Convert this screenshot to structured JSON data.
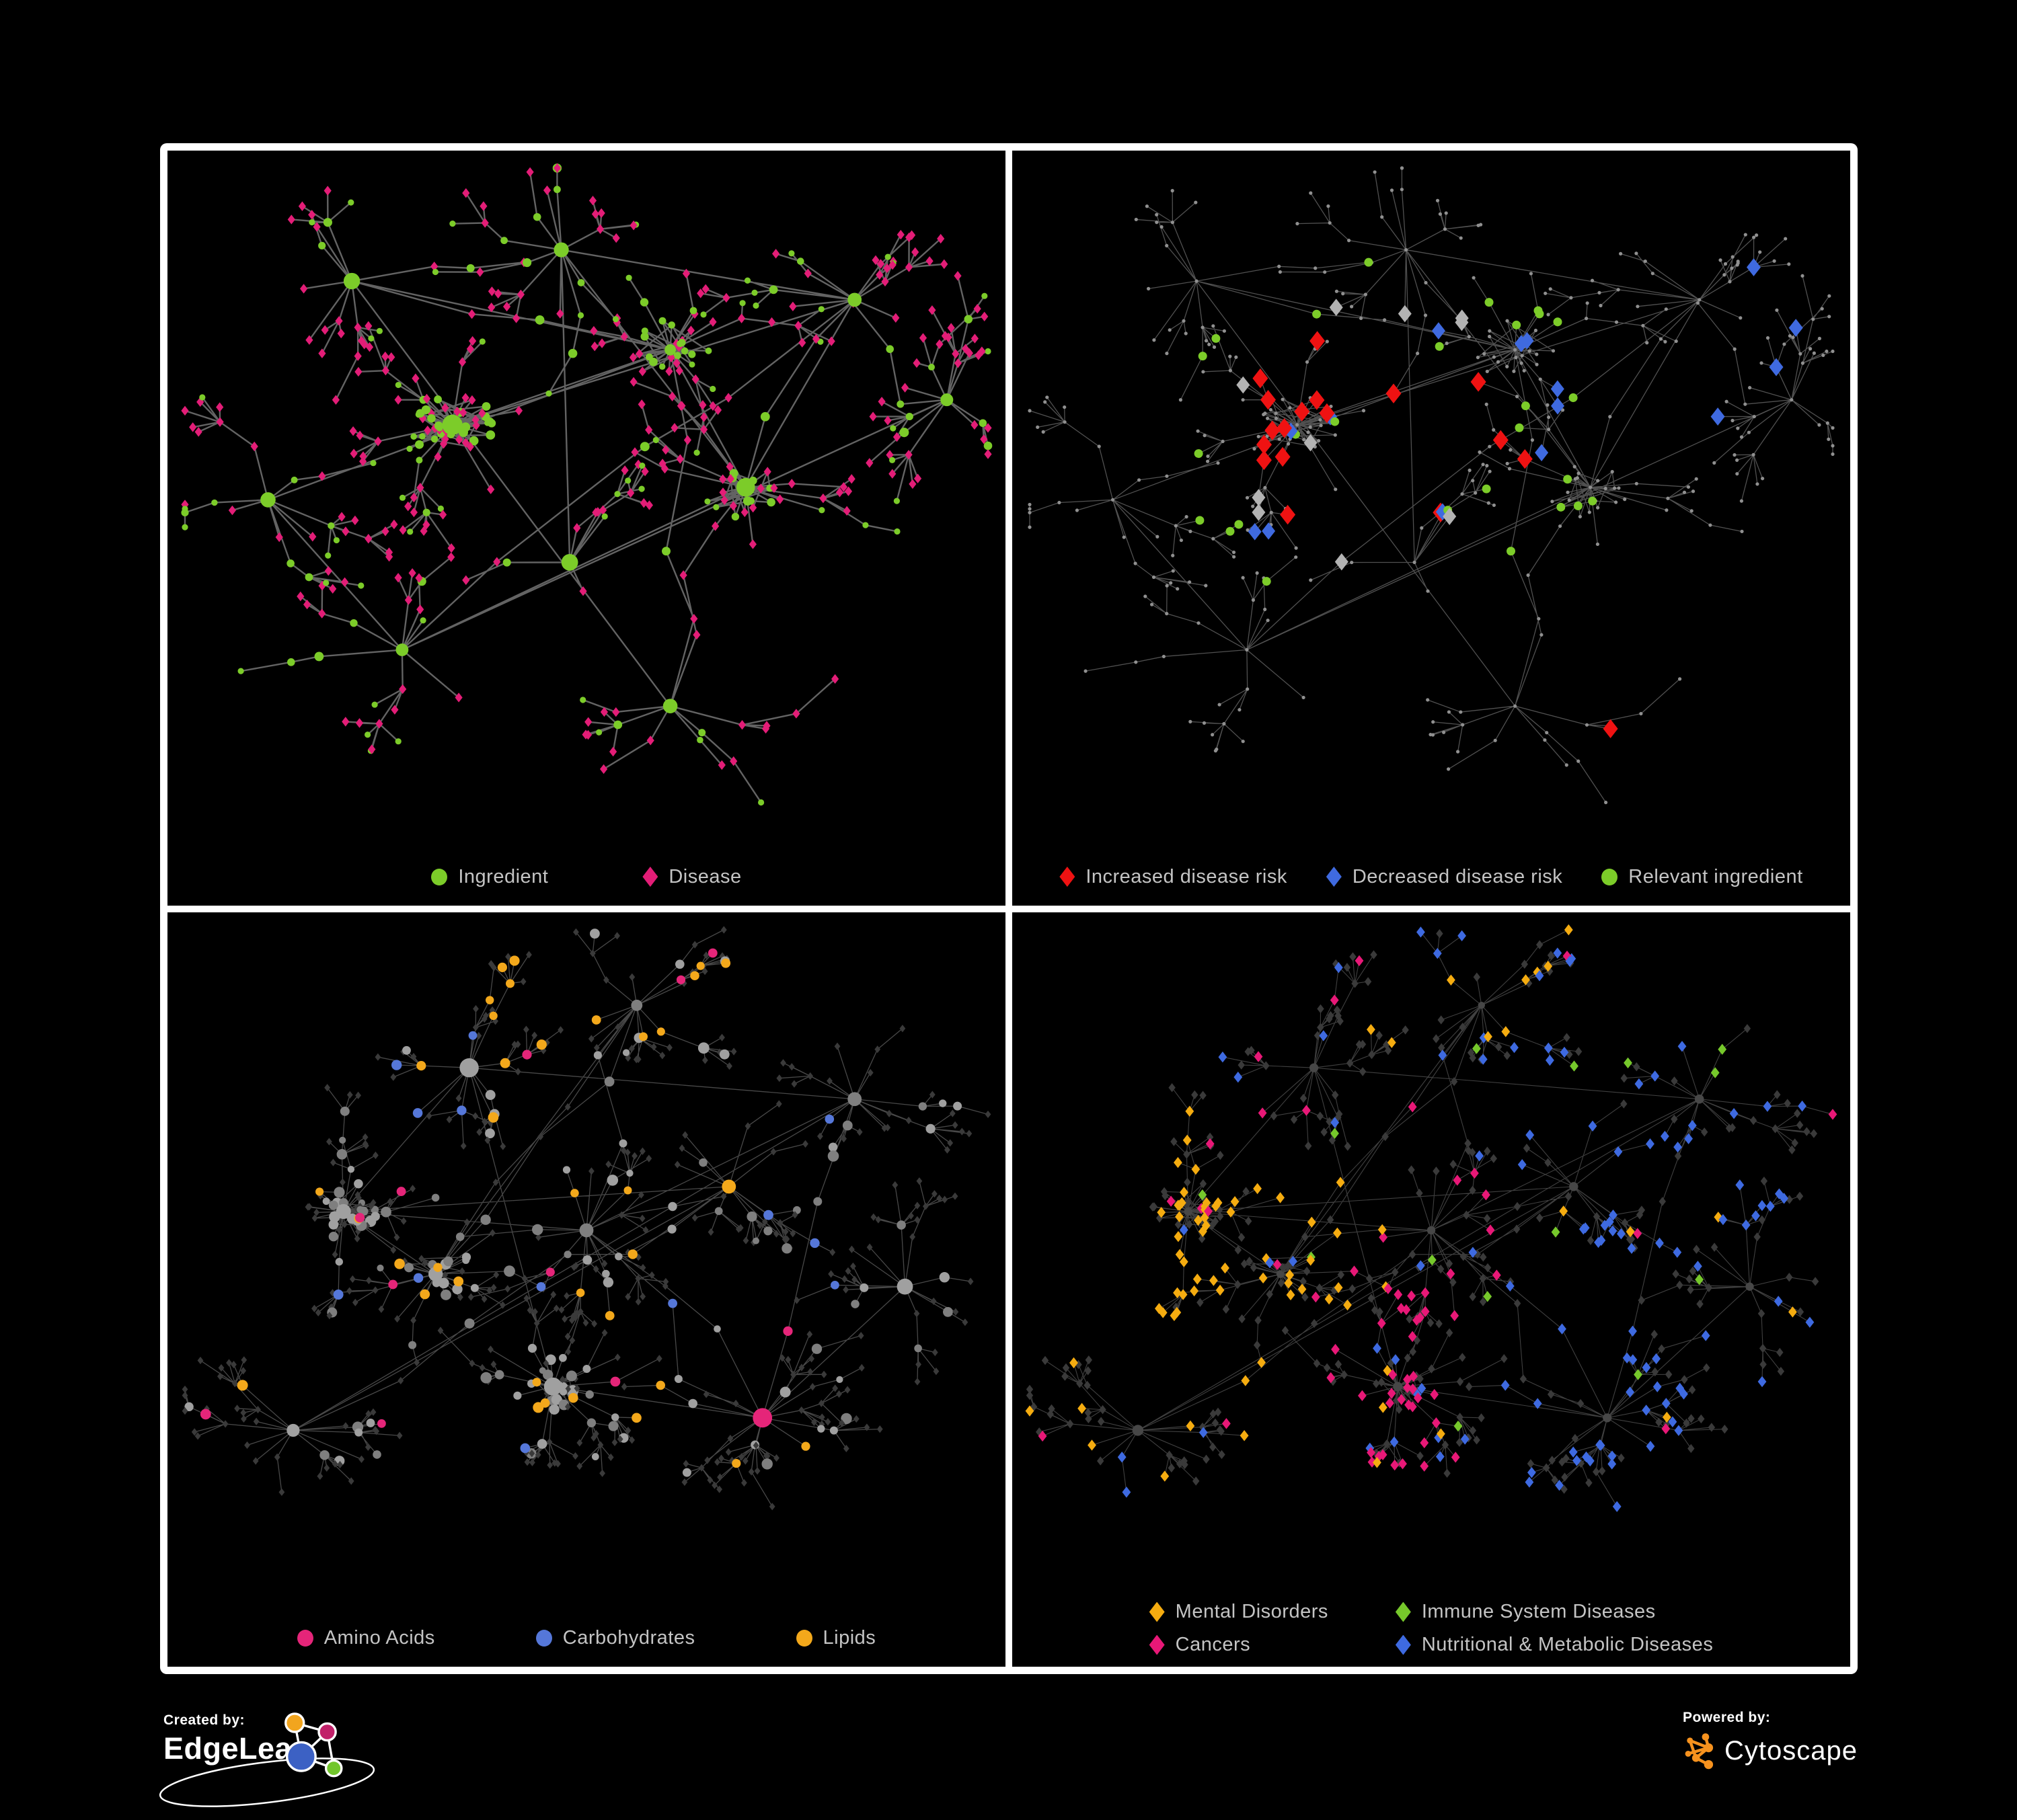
{
  "page": {
    "background": "#000000",
    "panel_border": "#ffffff",
    "legend_text_color": "#c4c4c4",
    "footer_text_color": "#ffffff"
  },
  "panels": [
    {
      "id": "ingredient-disease",
      "legend": [
        {
          "label": "Ingredient",
          "shape": "circle",
          "color": "#7ccc29"
        },
        {
          "label": "Disease",
          "shape": "diamond",
          "color": "#e31d77"
        }
      ],
      "net": {
        "seed": 2024,
        "styleSeed": 7,
        "style": "bipartite",
        "centers": [
          [
            0.34,
            0.4
          ],
          [
            0.6,
            0.28
          ],
          [
            0.69,
            0.5
          ],
          [
            0.22,
            0.17
          ],
          [
            0.47,
            0.12
          ],
          [
            0.82,
            0.2
          ],
          [
            0.6,
            0.85
          ],
          [
            0.28,
            0.76
          ],
          [
            0.12,
            0.52
          ],
          [
            0.48,
            0.62
          ],
          [
            0.93,
            0.36
          ]
        ],
        "dense": [
          0,
          1,
          2
        ],
        "fan": [
          6,
          11
        ],
        "depth": 3,
        "seg": 62,
        "split": 0.45,
        "bridges": 6,
        "edgeWidth": 2.4,
        "edgeOpacity": 0.9,
        "palette": {
          "a": "#7ccc29",
          "b": "#e31d77",
          "edge": "#6e6e6e"
        }
      }
    },
    {
      "id": "disease-risk",
      "legend": [
        {
          "label": "Increased disease risk",
          "shape": "diamond",
          "color": "#ef1212"
        },
        {
          "label": "Decreased disease risk",
          "shape": "diamond",
          "color": "#3f6ae0"
        },
        {
          "label": "Relevant ingredient",
          "shape": "circle",
          "color": "#7ccc29"
        }
      ],
      "net": {
        "seed": 2024,
        "styleSeed": 13,
        "style": "risk",
        "centers": [
          [
            0.34,
            0.4
          ],
          [
            0.6,
            0.28
          ],
          [
            0.69,
            0.5
          ],
          [
            0.22,
            0.17
          ],
          [
            0.47,
            0.12
          ],
          [
            0.82,
            0.2
          ],
          [
            0.6,
            0.85
          ],
          [
            0.28,
            0.76
          ],
          [
            0.12,
            0.52
          ],
          [
            0.48,
            0.62
          ],
          [
            0.93,
            0.36
          ]
        ],
        "dense": [
          0,
          1,
          2
        ],
        "fan": [
          6,
          11
        ],
        "depth": 3,
        "seg": 62,
        "split": 0.45,
        "bridges": 6,
        "edgeWidth": 1.3,
        "edgeOpacity": 0.8,
        "palette": {
          "base": "#909090",
          "edge": "#646464",
          "red": "#ef1212",
          "blue": "#3f6ae0",
          "silver": "#b3b3b3",
          "green": "#7ccc29"
        }
      }
    },
    {
      "id": "chemical-classes",
      "legend": [
        {
          "label": "Amino Acids",
          "shape": "circle",
          "color": "#e52579"
        },
        {
          "label": "Carbohydrates",
          "shape": "circle",
          "color": "#5577d9"
        },
        {
          "label": "Lipids",
          "shape": "circle",
          "color": "#f3a81b"
        }
      ],
      "net": {
        "seed": 515,
        "styleSeed": 21,
        "style": "chem",
        "centers": [
          [
            0.21,
            0.44
          ],
          [
            0.32,
            0.54
          ],
          [
            0.36,
            0.21
          ],
          [
            0.5,
            0.47
          ],
          [
            0.46,
            0.72
          ],
          [
            0.67,
            0.4
          ],
          [
            0.82,
            0.26
          ],
          [
            0.71,
            0.77
          ],
          [
            0.88,
            0.56
          ],
          [
            0.56,
            0.11
          ],
          [
            0.15,
            0.79
          ]
        ],
        "dense": [
          0,
          1,
          4
        ],
        "fan": [
          9,
          14
        ],
        "depth": 3,
        "seg": 56,
        "split": 0.5,
        "bridges": 8,
        "flavors": [
          "gray",
          "gray",
          "lipid",
          "mixed",
          "gray",
          "gray",
          "gray",
          "gray",
          "gray",
          "mixed",
          "gray"
        ],
        "edgeWidth": 1.3,
        "edgeOpacity": 0.5,
        "palette": {
          "gray1": "#a0a0a0",
          "gray2": "#7f7f7f",
          "leaf": "#3a3a3a",
          "amino": "#e52579",
          "carb": "#5577d9",
          "lipid": "#f3a81b",
          "edge": "#8f8f8f"
        }
      }
    },
    {
      "id": "disease-classes",
      "legend": [
        {
          "label": "Mental Disorders",
          "shape": "diamond",
          "color": "#f5ac10"
        },
        {
          "label": "Immune System Diseases",
          "shape": "diamond",
          "color": "#76c82b"
        },
        {
          "label": "Cancers",
          "shape": "diamond",
          "color": "#e81877"
        },
        {
          "label": "Nutritional & Metabolic Diseases",
          "shape": "diamond",
          "color": "#3e6ae1"
        }
      ],
      "net": {
        "seed": 515,
        "styleSeed": 29,
        "style": "disease",
        "centers": [
          [
            0.21,
            0.44
          ],
          [
            0.32,
            0.54
          ],
          [
            0.36,
            0.21
          ],
          [
            0.5,
            0.47
          ],
          [
            0.46,
            0.72
          ],
          [
            0.67,
            0.4
          ],
          [
            0.82,
            0.26
          ],
          [
            0.71,
            0.77
          ],
          [
            0.88,
            0.56
          ],
          [
            0.56,
            0.11
          ],
          [
            0.15,
            0.79
          ]
        ],
        "dense": [
          0,
          1,
          4
        ],
        "fan": [
          9,
          14
        ],
        "depth": 3,
        "seg": 56,
        "split": 0.5,
        "bridges": 8,
        "flavors": [
          "mental",
          "mental",
          "mixed",
          "cancer",
          "cancer",
          "nutri",
          "nutri",
          "nutri",
          "nutri",
          "mixed2",
          "mixed"
        ],
        "edgeWidth": 1.1,
        "edgeOpacity": 0.6,
        "palette": {
          "dark": "#3a3a3a",
          "hub": "#474747",
          "mental": "#f5ac10",
          "immune": "#76c82b",
          "cancer": "#e81877",
          "nutri": "#3e6ae1",
          "edge": "#6a6a6a"
        }
      }
    }
  ],
  "footer": {
    "created_by": {
      "label": "Created by:",
      "brand": "EdgeLeap",
      "logo_colors": {
        "orange": "#f2a51e",
        "magenta": "#c12069",
        "blue": "#3c61c4",
        "green": "#72c62c"
      }
    },
    "powered_by": {
      "label": "Powered by:",
      "brand": "Cytoscape",
      "logo_color": "#f6921e"
    }
  }
}
